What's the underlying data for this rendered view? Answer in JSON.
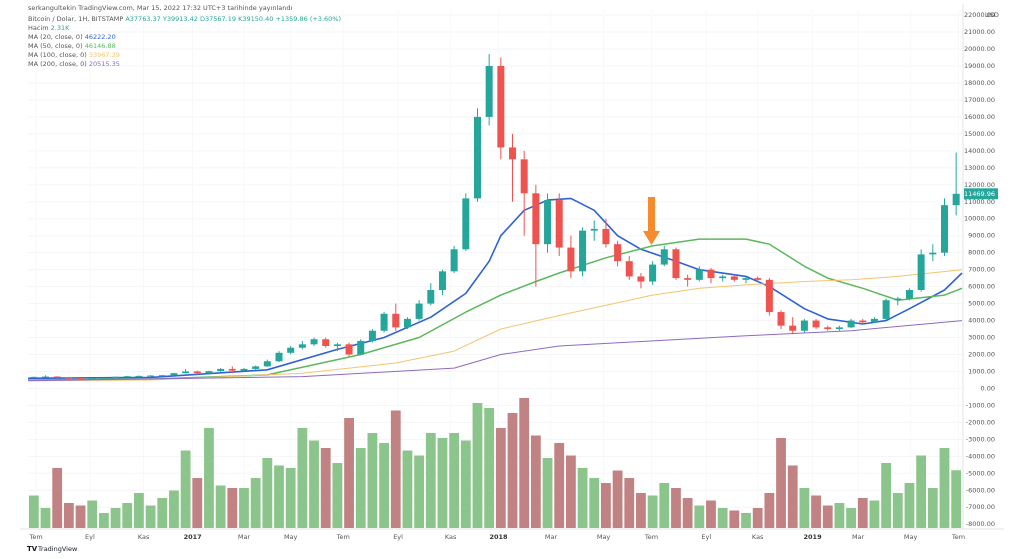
{
  "chart_data": {
    "type": "candlestick",
    "publisher": "serkangultekin TradingView.com, Mar 15, 2022 17:32 UTC+3 tarihinde yayınlandı",
    "title": "Bitcoin / Dolar, 1H, BITSTAMP",
    "ohlc_labels": [
      "A37763.37",
      "Y39913.42",
      "D37567.19",
      "K39150.40",
      "+1359.86 (+3.60%)"
    ],
    "volume_name": "Hacim",
    "volume_value_label": "2.31K",
    "currency": "USD",
    "brand": "TradingView",
    "up_color": "#26a69a",
    "down_color": "#ef5350",
    "volume_up_color": "#8cc58c",
    "volume_down_color": "#c08282",
    "open": [
      650,
      680,
      700,
      650,
      620,
      600,
      610,
      620,
      690,
      720,
      740,
      760,
      780,
      900,
      1000,
      900,
      1020,
      1150,
      1050,
      1150,
      1300,
      1600,
      2100,
      2400,
      2600,
      2900,
      2500,
      2600,
      2000,
      2800,
      3400,
      4400,
      3600,
      4100,
      5000,
      5800,
      6900,
      8200,
      11200,
      16000,
      19000,
      14200,
      13500,
      11500,
      8500,
      11100,
      8300,
      6900,
      9300,
      9400,
      8500,
      7500,
      6600,
      6300,
      7300,
      8200,
      6500,
      6400,
      7000,
      6500,
      6600,
      6400,
      6500,
      6400,
      4500,
      3700,
      3400,
      4000,
      3600,
      3500,
      3600,
      4000,
      3900,
      4100,
      5200,
      5300,
      5800,
      7900,
      8000,
      10800
    ],
    "high": [
      700,
      770,
      720,
      680,
      640,
      620,
      640,
      700,
      740,
      760,
      780,
      800,
      920,
      1150,
      1050,
      1050,
      1200,
      1300,
      1200,
      1350,
      1700,
      2200,
      2500,
      2800,
      3000,
      3000,
      2700,
      2700,
      2900,
      3500,
      4500,
      5000,
      4200,
      5200,
      6200,
      7000,
      8400,
      11500,
      16500,
      19700,
      19500,
      15000,
      14000,
      12000,
      11500,
      11500,
      9000,
      9500,
      9900,
      10000,
      8700,
      7800,
      6800,
      7500,
      8400,
      8300,
      6700,
      7200,
      7100,
      6700,
      6700,
      6600,
      6600,
      6500,
      4600,
      4200,
      4100,
      4100,
      3700,
      3700,
      4100,
      4100,
      4200,
      5300,
      5400,
      5900,
      8200,
      8500,
      11200,
      13900
    ],
    "low": [
      600,
      640,
      600,
      560,
      570,
      580,
      590,
      610,
      680,
      690,
      720,
      740,
      770,
      880,
      780,
      880,
      980,
      900,
      1000,
      1100,
      1280,
      1550,
      2000,
      2300,
      2500,
      2400,
      2200,
      1900,
      1950,
      2700,
      3300,
      3400,
      3500,
      4000,
      4900,
      5500,
      6800,
      8100,
      11000,
      15500,
      13500,
      11000,
      9000,
      6000,
      8000,
      7800,
      6500,
      6600,
      8700,
      8300,
      7200,
      6400,
      5900,
      6100,
      7200,
      6400,
      6000,
      6300,
      6200,
      6300,
      6300,
      6200,
      6300,
      4300,
      3500,
      3200,
      3300,
      3500,
      3400,
      3400,
      3550,
      3800,
      3850,
      4050,
      4900,
      5200,
      5700,
      7500,
      7800,
      10200
    ],
    "close": [
      680,
      700,
      650,
      620,
      600,
      610,
      620,
      690,
      720,
      740,
      760,
      780,
      900,
      1000,
      900,
      1020,
      1150,
      1050,
      1150,
      1300,
      1600,
      2100,
      2400,
      2600,
      2900,
      2500,
      2600,
      2000,
      2800,
      3400,
      4400,
      3600,
      4100,
      5000,
      5800,
      6900,
      8200,
      11200,
      16000,
      19000,
      14200,
      13500,
      11500,
      8500,
      11100,
      8300,
      6900,
      9300,
      9400,
      8500,
      7500,
      6600,
      6300,
      7300,
      8200,
      6500,
      6400,
      7000,
      6500,
      6600,
      6400,
      6500,
      6400,
      4500,
      3700,
      3400,
      4000,
      3600,
      3500,
      3600,
      4000,
      3900,
      4100,
      5200,
      5300,
      5800,
      7900,
      8000,
      10800,
      11469.96
    ],
    "volume": [
      1.3,
      0.8,
      2.4,
      1.0,
      0.9,
      1.1,
      0.6,
      0.8,
      1.0,
      1.4,
      0.9,
      1.2,
      1.5,
      3.1,
      2.0,
      4.0,
      1.7,
      1.6,
      1.6,
      2.0,
      2.8,
      2.5,
      2.4,
      4.0,
      3.5,
      3.2,
      2.6,
      4.4,
      3.2,
      3.8,
      3.4,
      4.7,
      3.1,
      2.9,
      3.8,
      3.6,
      3.8,
      3.5,
      5.0,
      4.8,
      4.0,
      4.6,
      5.2,
      3.7,
      2.8,
      3.4,
      2.9,
      2.4,
      2.0,
      1.8,
      2.3,
      2.0,
      1.4,
      1.3,
      1.8,
      1.6,
      1.2,
      0.9,
      1.1,
      0.8,
      0.7,
      0.6,
      0.8,
      1.4,
      3.6,
      2.5,
      1.6,
      1.3,
      0.9,
      1.0,
      0.8,
      1.2,
      1.1,
      2.6,
      1.4,
      1.8,
      2.9,
      1.6,
      3.2,
      2.31
    ],
    "series": [
      {
        "name": "MA (20, close, 0)",
        "value_label": "46222.20",
        "color": "#2f62d6",
        "x": [
          -0.5,
          10,
          20,
          26,
          30,
          34,
          37,
          39,
          40,
          42,
          44,
          46,
          48,
          50,
          52,
          55,
          57,
          61,
          63,
          66,
          68,
          71,
          73,
          75,
          78,
          79.5
        ],
        "values": [
          600,
          650,
          1100,
          2300,
          3000,
          4200,
          5600,
          7500,
          9000,
          10500,
          11100,
          11200,
          10500,
          9000,
          8200,
          7500,
          7000,
          6600,
          6000,
          4700,
          4100,
          3800,
          4000,
          4700,
          5800,
          6800
        ]
      },
      {
        "name": "MA (50, close, 0)",
        "value_label": "46146.88",
        "color": "#5cb85c",
        "x": [
          -0.5,
          10,
          20,
          28,
          33,
          37,
          40,
          43,
          45,
          49,
          53,
          57,
          61,
          63,
          66,
          68,
          71,
          74,
          78,
          79.5
        ],
        "values": [
          500,
          550,
          800,
          2000,
          3000,
          4500,
          5500,
          6300,
          6800,
          7700,
          8400,
          8800,
          8800,
          8500,
          7200,
          6500,
          5900,
          5200,
          5500,
          5900
        ]
      },
      {
        "name": "MA (100, close, 0)",
        "value_label": "33967.39",
        "color": "#f5c46e",
        "x": [
          -0.5,
          10,
          23,
          31,
          36,
          40,
          45,
          49,
          53,
          57,
          61,
          66,
          70,
          74,
          79.5
        ],
        "values": [
          450,
          500,
          900,
          1500,
          2200,
          3500,
          4300,
          4900,
          5500,
          5900,
          6100,
          6300,
          6400,
          6600,
          7000
        ]
      },
      {
        "name": "MA (200, close, 0)",
        "value_label": "20515.35",
        "color": "#8e6bbf",
        "x": [
          -0.5,
          23,
          36,
          40,
          45,
          53,
          61,
          70,
          79.5
        ],
        "values": [
          450,
          700,
          1200,
          2000,
          2500,
          2800,
          3100,
          3400,
          4000
        ]
      }
    ],
    "xlim": [
      -0.5,
      79.5
    ],
    "xticks": [
      {
        "value": 0.2,
        "label": "Tem"
      },
      {
        "value": 4.8,
        "label": "Eyl"
      },
      {
        "value": 9.4,
        "label": "Kas"
      },
      {
        "value": 13.6,
        "label": "2017"
      },
      {
        "value": 18.0,
        "label": "Mar"
      },
      {
        "value": 22.0,
        "label": "May"
      },
      {
        "value": 26.5,
        "label": "Tem"
      },
      {
        "value": 31.2,
        "label": "Eyl"
      },
      {
        "value": 35.7,
        "label": "Kas"
      },
      {
        "value": 39.8,
        "label": "2018"
      },
      {
        "value": 44.3,
        "label": "Mar"
      },
      {
        "value": 48.8,
        "label": "May"
      },
      {
        "value": 52.9,
        "label": "Tem"
      },
      {
        "value": 57.6,
        "label": "Eyl"
      },
      {
        "value": 62.0,
        "label": "Kas"
      },
      {
        "value": 66.7,
        "label": "2019"
      },
      {
        "value": 70.6,
        "label": "Mar"
      },
      {
        "value": 75.1,
        "label": "May"
      },
      {
        "value": 79.2,
        "label": "Tem"
      }
    ],
    "ylim": [
      -8400,
      22300
    ],
    "yticks": [
      {
        "value": 22000,
        "label": "22000.00"
      },
      {
        "value": 21000,
        "label": "21000.00"
      },
      {
        "value": 20000,
        "label": "20000.00"
      },
      {
        "value": 19000,
        "label": "19000.00"
      },
      {
        "value": 18000,
        "label": "18000.00"
      },
      {
        "value": 17000,
        "label": "17000.00"
      },
      {
        "value": 16000,
        "label": "16000.00"
      },
      {
        "value": 15000,
        "label": "15000.00"
      },
      {
        "value": 14000,
        "label": "14000.00"
      },
      {
        "value": 13000,
        "label": "13000.00"
      },
      {
        "value": 12000,
        "label": "12000.00"
      },
      {
        "value": 11000,
        "label": "11000.00"
      },
      {
        "value": 10000,
        "label": "10000.00"
      },
      {
        "value": 9000,
        "label": "9000.00"
      },
      {
        "value": 8000,
        "label": "8000.00"
      },
      {
        "value": 7000,
        "label": "7000.00"
      },
      {
        "value": 6000,
        "label": "6000.00"
      },
      {
        "value": 5000,
        "label": "5000.00"
      },
      {
        "value": 4000,
        "label": "4000.00"
      },
      {
        "value": 3000,
        "label": "3000.00"
      },
      {
        "value": 2000,
        "label": "2000.00"
      },
      {
        "value": 1000,
        "label": "1000.00"
      },
      {
        "value": 0,
        "label": "0.00"
      },
      {
        "value": -1000,
        "label": "-1000.00"
      },
      {
        "value": -2000,
        "label": "-2000.00"
      },
      {
        "value": -3000,
        "label": "-3000.00"
      },
      {
        "value": -4000,
        "label": "-4000.00"
      },
      {
        "value": -5000,
        "label": "-5000.00"
      },
      {
        "value": -6000,
        "label": "-6000.00"
      },
      {
        "value": -7000,
        "label": "-7000.00"
      },
      {
        "value": -8000,
        "label": "-8000.00"
      }
    ]
  }
}
